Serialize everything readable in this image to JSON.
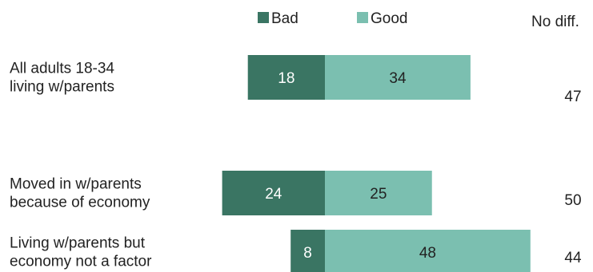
{
  "chart_data": {
    "type": "bar",
    "orientation": "horizontal",
    "stacked": "diverging",
    "categories": [
      [
        "All adults 18-34",
        "living w/parents"
      ],
      [
        "Moved in w/parents",
        "because of economy"
      ],
      [
        "Living w/parents but",
        "economy not a factor"
      ]
    ],
    "series": [
      {
        "name": "Bad",
        "values": [
          18,
          24,
          8
        ],
        "color": "#3a7563"
      },
      {
        "name": "Good",
        "values": [
          34,
          25,
          48
        ],
        "color": "#7bbfb0"
      }
    ],
    "extra_column": {
      "label": "No diff.",
      "values": [
        47,
        50,
        44
      ]
    },
    "legend_placement": "top",
    "grid": false
  }
}
